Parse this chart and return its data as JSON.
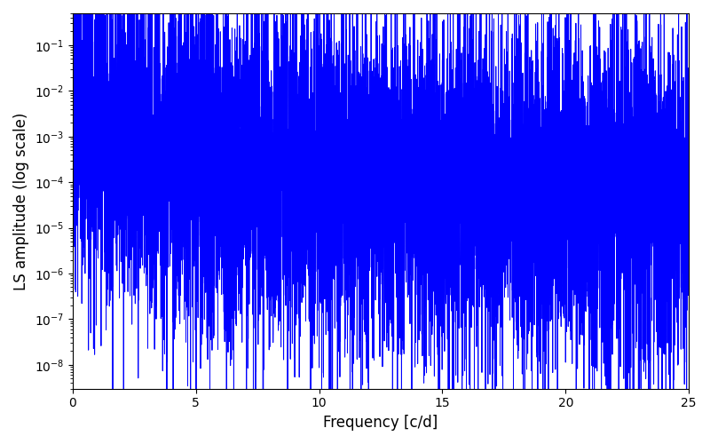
{
  "title": "",
  "xlabel": "Frequency [c/d]",
  "ylabel": "LS amplitude (log scale)",
  "xlim": [
    0,
    25
  ],
  "ylim": [
    3e-09,
    0.5
  ],
  "line_color": "#0000ff",
  "line_width": 0.7,
  "background_color": "#ffffff",
  "seed": 12345,
  "n_points": 8000,
  "freq_max": 25.0,
  "figsize": [
    8.0,
    5.0
  ],
  "dpi": 100
}
